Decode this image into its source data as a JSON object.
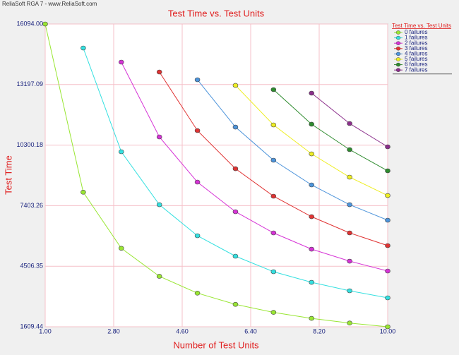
{
  "chart_data": {
    "type": "line",
    "header": "ReliaSoft RGA 7 - www.ReliaSoft.com",
    "title": "Test Time vs. Test Units",
    "x_label": "Number of Test Units",
    "y_label": "Test Time",
    "legend_title": "Test Time vs. Test Units",
    "legend_position": "right",
    "grid": true,
    "x": [
      1,
      2,
      3,
      4,
      5,
      6,
      7,
      8,
      9,
      10
    ],
    "xlim": [
      1,
      10
    ],
    "xticks": [
      {
        "value": 1,
        "label": "1.00"
      },
      {
        "value": 2.8,
        "label": "2.80"
      },
      {
        "value": 4.6,
        "label": "4.60"
      },
      {
        "value": 6.4,
        "label": "6.40"
      },
      {
        "value": 8.2,
        "label": "8.20"
      },
      {
        "value": 10,
        "label": "10.00"
      }
    ],
    "ylim": [
      1609.44,
      16094
    ],
    "yticks": [
      1609.44,
      4506.35,
      7403.26,
      10300.18,
      13197.09,
      {
        "value": 16094,
        "label": "16094.00"
      }
    ],
    "series": [
      {
        "name": "0 failures",
        "color": "#99e633",
        "values": [
          16094,
          8047,
          5365,
          4024,
          3219,
          2682,
          2299,
          2012,
          1788,
          1609.44
        ]
      },
      {
        "name": "1 failures",
        "color": "#33e0e0",
        "values": [
          null,
          14946,
          9983,
          7450,
          5965,
          4986,
          4243,
          3736,
          3331,
          2994
        ]
      },
      {
        "name": "2 failures",
        "color": "#d633d6",
        "values": [
          null,
          null,
          14271,
          10692,
          8531,
          7113,
          6100,
          5323,
          4749,
          4277
        ]
      },
      {
        "name": "3 failures",
        "color": "#e03333",
        "values": [
          null,
          null,
          null,
          13798,
          10996,
          9172,
          7856,
          6876,
          6100,
          5492
        ]
      },
      {
        "name": "4 failures",
        "color": "#4d94db",
        "values": [
          null,
          null,
          null,
          null,
          13427,
          11164,
          9578,
          8396,
          7450,
          6708
        ]
      },
      {
        "name": "5 failures",
        "color": "#eeee22",
        "values": [
          null,
          null,
          null,
          null,
          null,
          13157,
          11266,
          9881,
          8767,
          7889
        ]
      },
      {
        "name": "6 failures",
        "color": "#2e8b2e",
        "values": [
          null,
          null,
          null,
          null,
          null,
          null,
          12954,
          11300,
          10084,
          9071
        ]
      },
      {
        "name": "7 failures",
        "color": "#8b2e8b",
        "values": [
          null,
          null,
          null,
          null,
          null,
          null,
          null,
          12785,
          11333,
          10219
        ]
      }
    ]
  }
}
